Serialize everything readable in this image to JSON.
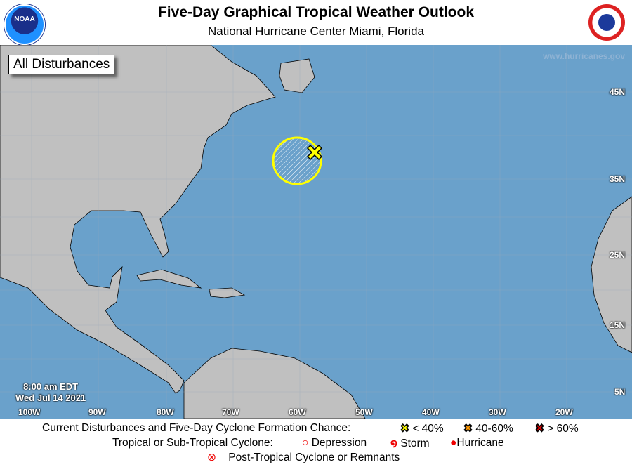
{
  "header": {
    "title": "Five-Day Graphical Tropical Weather Outlook",
    "subtitle": "National Hurricane Center  Miami, Florida",
    "left_logo": "NOAA",
    "right_logo": "NATIONAL WEATHER SERVICE"
  },
  "map": {
    "badge": "All Disturbances",
    "url": "www.hurricanes.gov",
    "time": "8:00 am EDT",
    "date": "Wed Jul 14 2021",
    "lat_labels": [
      "45N",
      "35N",
      "25N",
      "15N",
      "5N"
    ],
    "lon_labels": [
      "100W",
      "90W",
      "80W",
      "70W",
      "60W",
      "50W",
      "40W",
      "30W",
      "20W"
    ],
    "colors": {
      "water": "#6aa1cb",
      "land": "#c0c0c0",
      "area_outline": "#ffff00"
    },
    "disturbances": [
      {
        "chance": "< 40%",
        "color": "#ffff00",
        "icon": "x-marker-icon"
      }
    ]
  },
  "legend": {
    "row1_label": "Current Disturbances and Five-Day Cyclone Formation Chance:",
    "low": "< 40%",
    "mid": "40-60%",
    "high": "> 60%",
    "colors": {
      "low": "#ffff00",
      "mid": "#ff9900",
      "high": "#dd0000"
    },
    "row2_label": "Tropical or Sub-Tropical Cyclone:",
    "depression": "Depression",
    "storm": "Storm",
    "hurricane": "Hurricane",
    "post_tropical": "Post-Tropical Cyclone or Remnants"
  }
}
